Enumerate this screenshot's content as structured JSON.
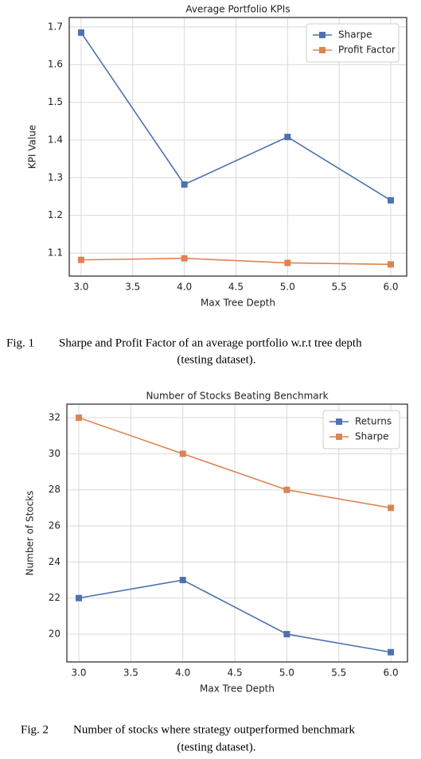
{
  "chart_data": [
    {
      "type": "line",
      "title": "Average Portfolio KPIs",
      "x_label": "Max Tree Depth",
      "y_label": "KPI Value",
      "x": [
        3,
        4,
        5,
        6
      ],
      "series": [
        {
          "name": "Sharpe",
          "color": "#4c72b0",
          "values": [
            1.685,
            1.282,
            1.408,
            1.24
          ]
        },
        {
          "name": "Profit Factor",
          "color": "#dd8452",
          "values": [
            1.082,
            1.086,
            1.074,
            1.07
          ]
        }
      ],
      "xlim": [
        2.885,
        6.154
      ],
      "xticks": [
        {
          "value": 3,
          "label": "3.0"
        },
        3.5,
        {
          "value": 4,
          "label": "4.0"
        },
        4.5,
        {
          "value": 5,
          "label": "5.0"
        },
        5.5,
        {
          "value": 6,
          "label": "6.0"
        }
      ],
      "ylim": [
        1.039,
        1.725
      ],
      "yticks": [
        1.1,
        1.2,
        1.3,
        1.4,
        1.5,
        1.6,
        1.7
      ],
      "grid": true,
      "legend": "upper right"
    },
    {
      "type": "line",
      "title": "Number of Stocks Beating Benchmark",
      "x_label": "Max Tree Depth",
      "y_label": "Number of Stocks",
      "x": [
        3,
        4,
        5,
        6
      ],
      "series": [
        {
          "name": "Returns",
          "color": "#4c72b0",
          "values": [
            22,
            23,
            20,
            19
          ]
        },
        {
          "name": "Sharpe",
          "color": "#dd8452",
          "values": [
            32,
            30,
            28,
            27
          ]
        }
      ],
      "xlim": [
        2.885,
        6.16
      ],
      "xticks": [
        {
          "value": 3,
          "label": "3.0"
        },
        3.5,
        {
          "value": 4,
          "label": "4.0"
        },
        4.5,
        {
          "value": 5,
          "label": "5.0"
        },
        5.5,
        {
          "value": 6,
          "label": "6.0"
        }
      ],
      "ylim": [
        18.46,
        32.75
      ],
      "yticks": [
        20,
        22,
        24,
        26,
        28,
        30,
        32
      ],
      "grid": true,
      "legend": "upper right"
    }
  ],
  "captions": [
    [
      "Fig. 1",
      "Sharpe and Profit Factor of an average portfolio w.r.t tree depth",
      "(testing dataset)."
    ],
    [
      "Fig. 2",
      "Number of stocks where strategy outperformed benchmark",
      "(testing dataset)."
    ]
  ]
}
